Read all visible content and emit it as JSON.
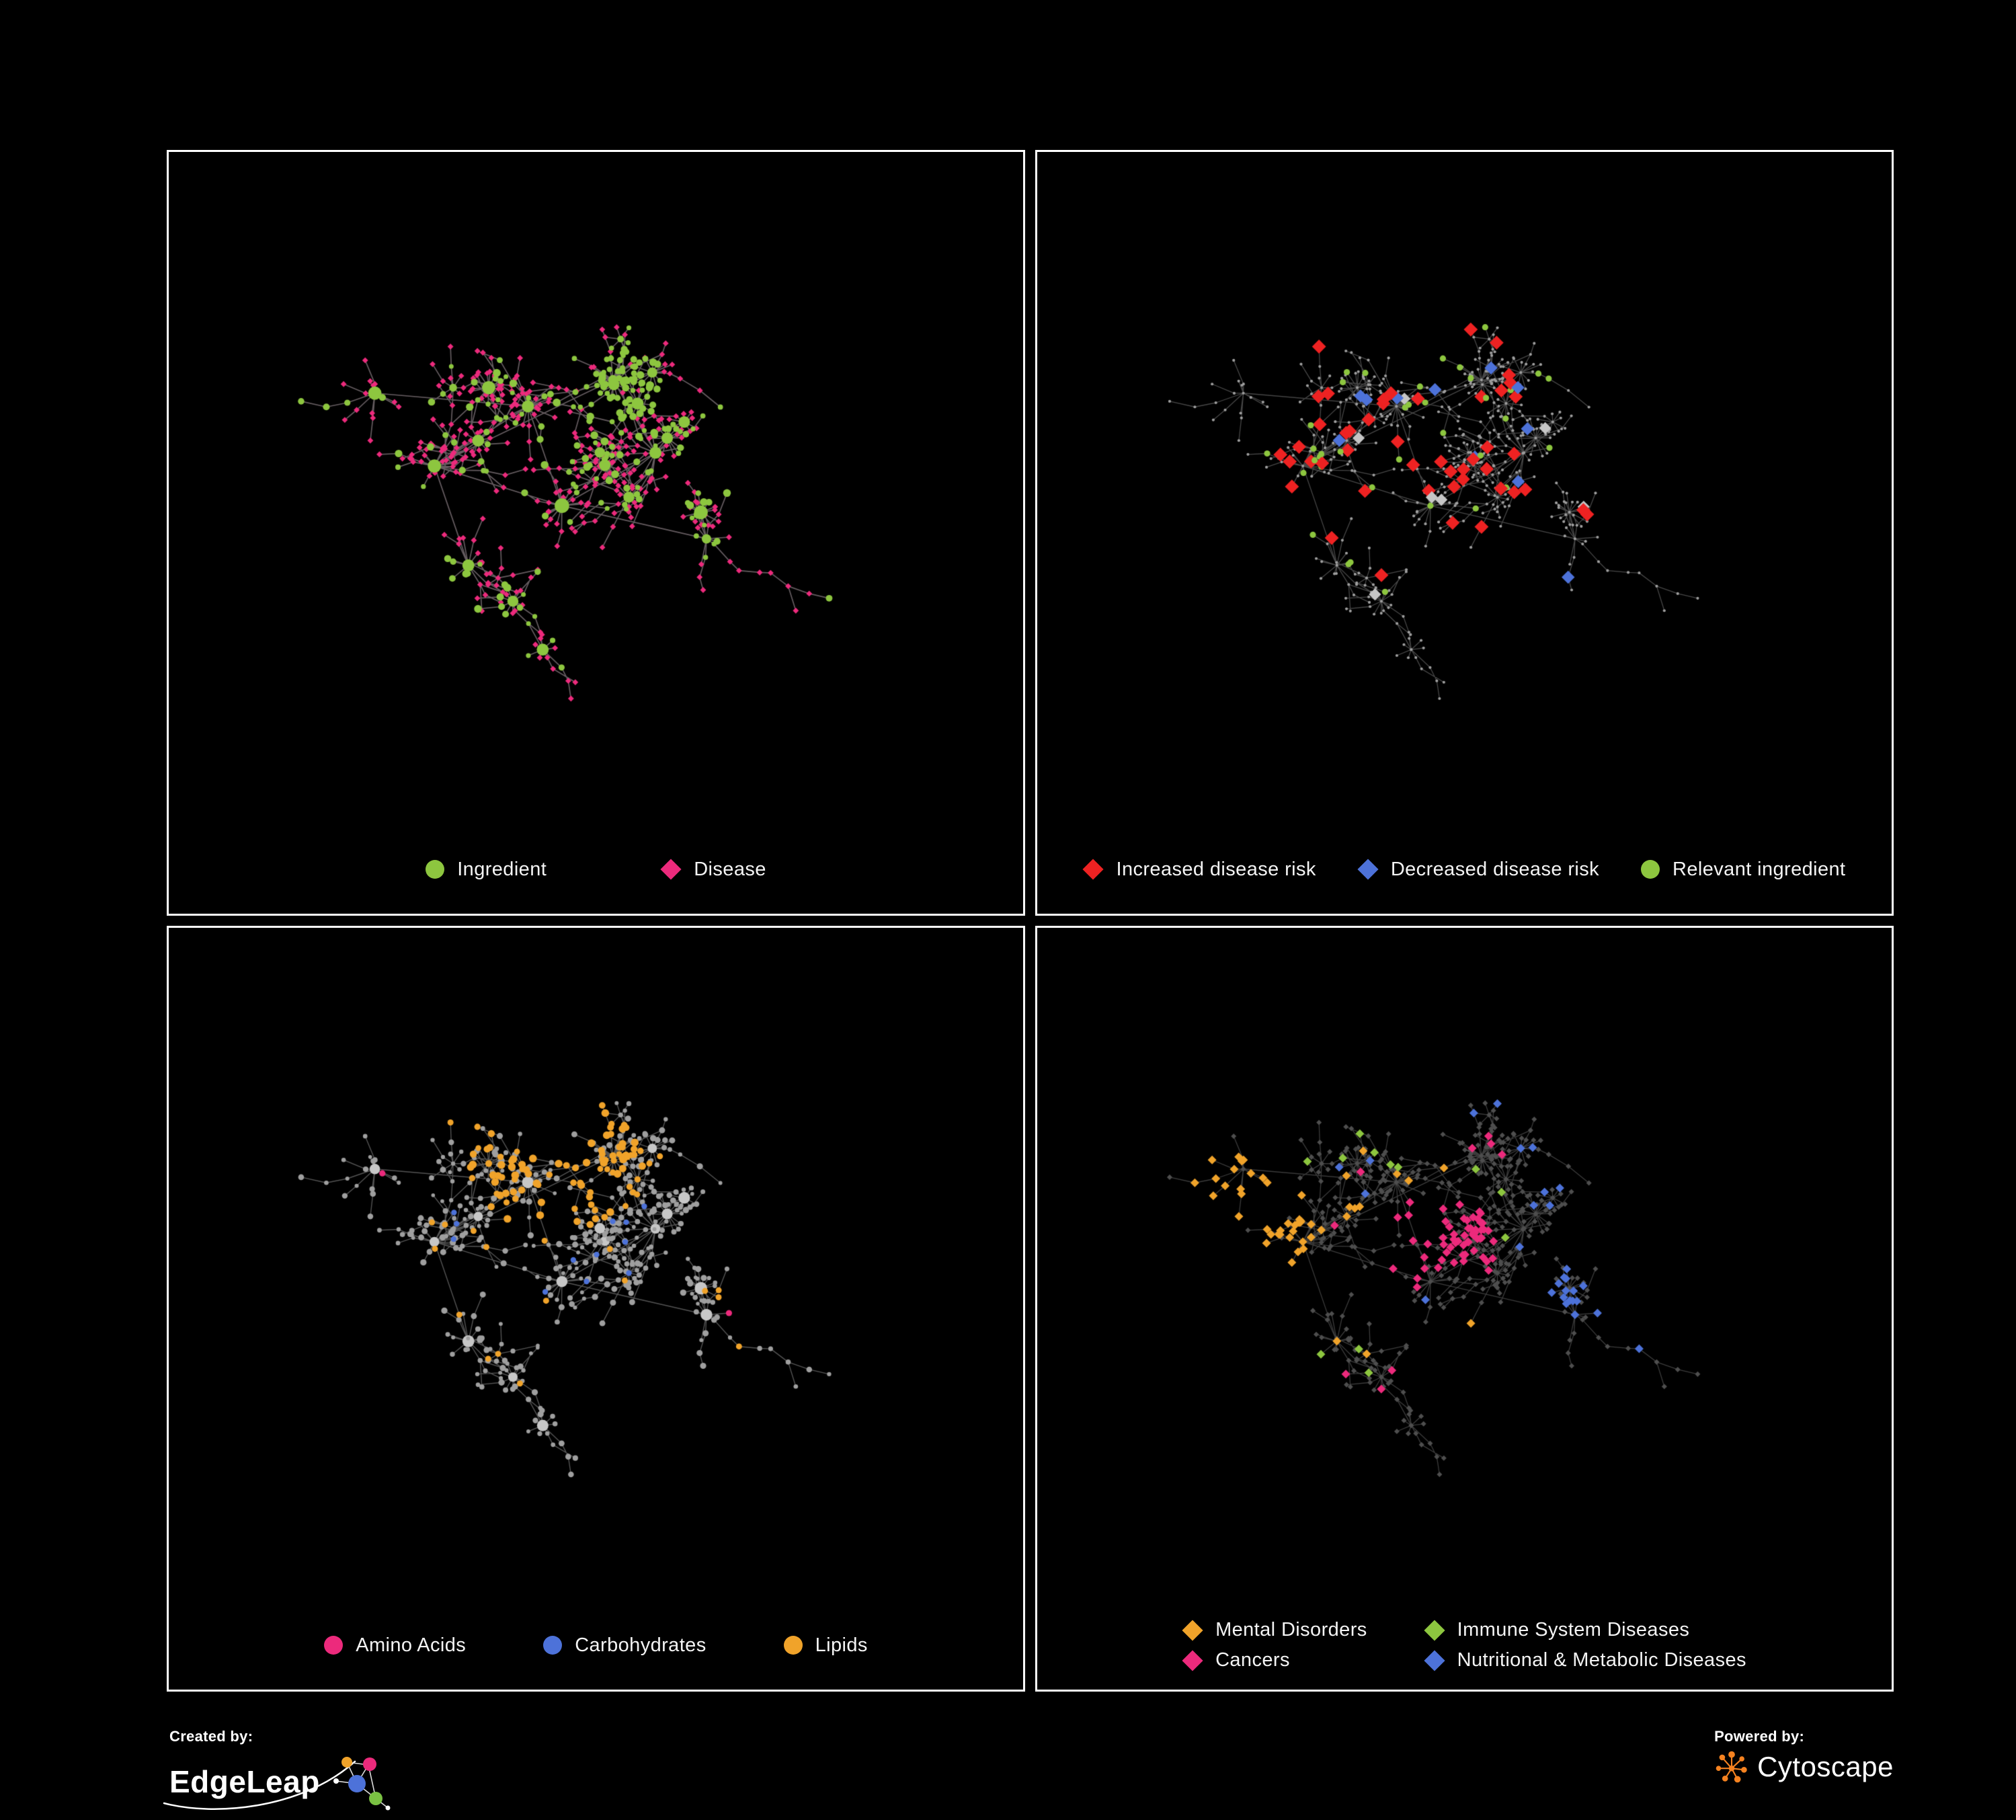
{
  "panels": [
    {
      "id": "ingredient-disease-network",
      "legend": [
        {
          "label": "Ingredient",
          "color": "#8dc63f",
          "shape": "circle"
        },
        {
          "label": "Disease",
          "color": "#ec2a7c",
          "shape": "diamond"
        }
      ]
    },
    {
      "id": "disease-risk-network",
      "legend": [
        {
          "label": "Increased disease risk",
          "color": "#ee2222",
          "shape": "diamond"
        },
        {
          "label": "Decreased disease risk",
          "color": "#4d72d9",
          "shape": "diamond"
        },
        {
          "label": "Relevant ingredient",
          "color": "#8dc63f",
          "shape": "circle"
        }
      ]
    },
    {
      "id": "macronutrient-network",
      "legend": [
        {
          "label": "Amino Acids",
          "color": "#ec2a7c",
          "shape": "circle"
        },
        {
          "label": "Carbohydrates",
          "color": "#4d72d9",
          "shape": "circle"
        },
        {
          "label": "Lipids",
          "color": "#f0a32a",
          "shape": "circle"
        }
      ]
    },
    {
      "id": "disease-category-network",
      "legend": [
        {
          "label": "Mental Disorders",
          "color": "#f0a32a",
          "shape": "diamond"
        },
        {
          "label": "Immune System Diseases",
          "color": "#8dc63f",
          "shape": "diamond"
        },
        {
          "label": "Cancers",
          "color": "#ec2a7c",
          "shape": "diamond"
        },
        {
          "label": "Nutritional & Metabolic Diseases",
          "color": "#4d72d9",
          "shape": "diamond"
        }
      ]
    }
  ],
  "palette": {
    "green": "#8dc63f",
    "pink": "#ec2a7c",
    "red": "#ee2222",
    "blue": "#4d72d9",
    "orange": "#f0a32a",
    "gray_light": "#c6c6c6",
    "gray_node": "#9e9e9e",
    "gray_dark": "#4e4e4e",
    "background": "#000000",
    "panel_border": "#ffffff"
  },
  "footer": {
    "created_by": "Created by:",
    "edgeleap": "EdgeLeap",
    "powered_by": "Powered by:",
    "cytoscape": "Cytoscape"
  }
}
